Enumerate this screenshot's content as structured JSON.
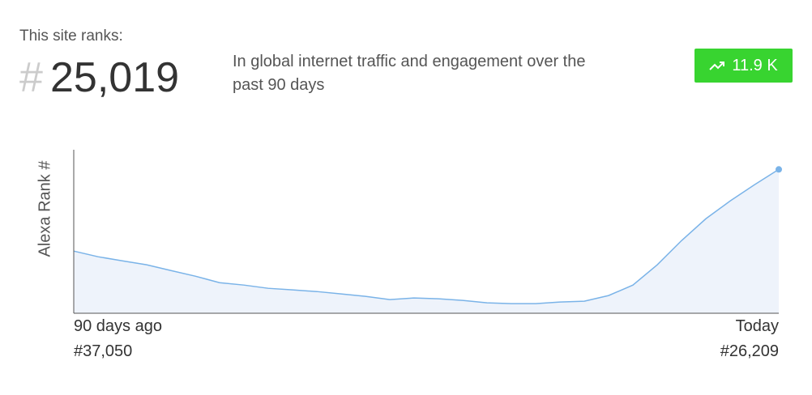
{
  "header": {
    "intro": "This site ranks:",
    "hash": "#",
    "rank": "25,019",
    "description": "In global internet traffic and engagement over the past 90 days",
    "badge": "11.9 K"
  },
  "chart_data": {
    "type": "line",
    "ylabel": "Alexa Rank #",
    "color": "#7ab3e8",
    "fill": "#eef3fb",
    "categories": [
      "90 days ago",
      null,
      null,
      null,
      null,
      null,
      null,
      null,
      null,
      null,
      null,
      null,
      null,
      null,
      null,
      null,
      null,
      null,
      null,
      null,
      null,
      null,
      null,
      null,
      null,
      null,
      null,
      null,
      null,
      "Today"
    ],
    "values": [
      37050,
      37800,
      38340,
      38870,
      39630,
      40380,
      41240,
      41560,
      41990,
      42200,
      42420,
      42740,
      43060,
      43490,
      43270,
      43380,
      43600,
      43920,
      44030,
      44030,
      43810,
      43700,
      42950,
      41560,
      38870,
      35660,
      32760,
      30400,
      28250,
      26209
    ],
    "value_labels": [
      "#37,050",
      null,
      null,
      null,
      null,
      null,
      null,
      null,
      null,
      null,
      null,
      null,
      null,
      null,
      null,
      null,
      null,
      null,
      null,
      null,
      null,
      null,
      null,
      null,
      null,
      null,
      null,
      null,
      null,
      "#26,209"
    ],
    "ylim": [
      45300,
      23600
    ]
  }
}
